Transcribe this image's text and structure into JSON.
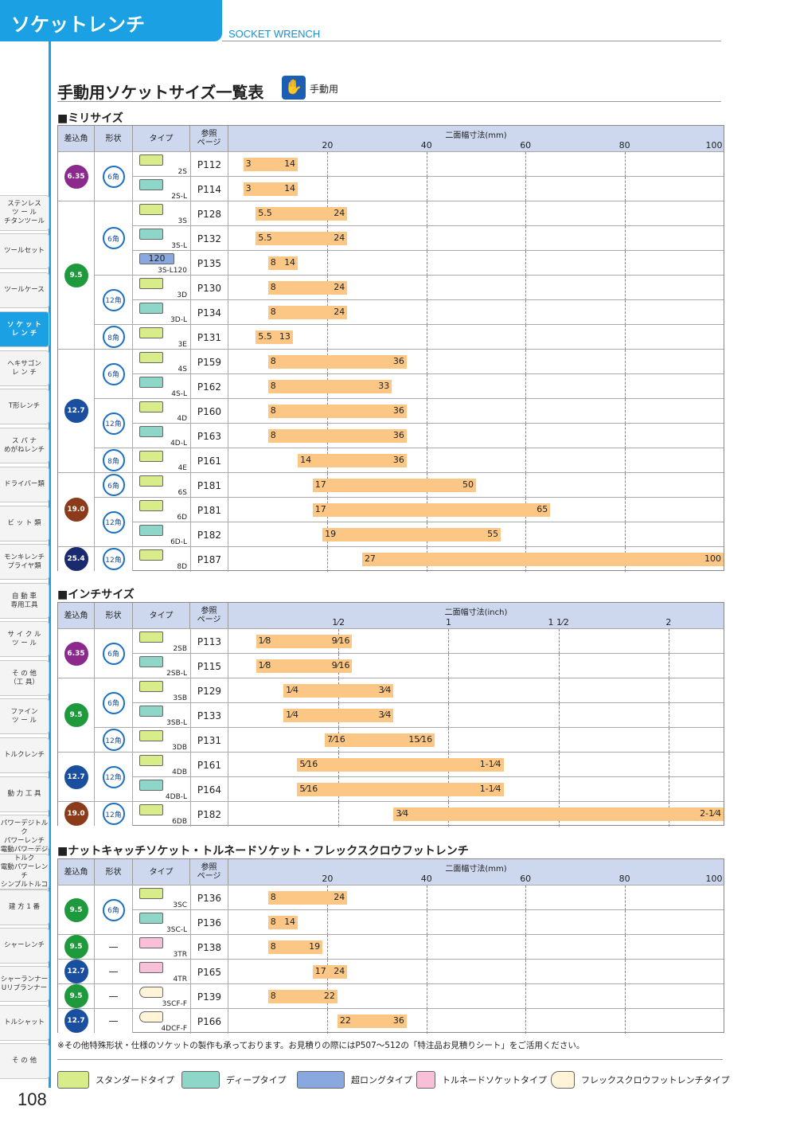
{
  "header": {
    "title": "ソケットレンチ",
    "subtitle_en": "SOCKET WRENCH"
  },
  "page_title": "手動用ソケットサイズ一覧表",
  "hand_label": "手動用",
  "page_number": "108",
  "tabs": [
    {
      "label": "ステンレス\nツ ー ル\nチタンツール",
      "active": false
    },
    {
      "label": "ツールセット",
      "active": false
    },
    {
      "label": "ツールケース",
      "active": false
    },
    {
      "label": "ソ ケ ッ ト\nレ ン チ",
      "active": true
    },
    {
      "label": "ヘキサゴン\nレ ン チ",
      "active": false
    },
    {
      "label": "T形レンチ",
      "active": false
    },
    {
      "label": "ス パ ナ\nめがねレンチ",
      "active": false
    },
    {
      "label": "ドライバー類",
      "active": false
    },
    {
      "label": "ビ ッ ト 類",
      "active": false
    },
    {
      "label": "モンキレンチ\nプライヤ類",
      "active": false
    },
    {
      "label": "自 動 車\n専用工具",
      "active": false
    },
    {
      "label": "サ イ ク ル\nツ ー ル",
      "active": false
    },
    {
      "label": "そ の 他\n（工 具）",
      "active": false
    },
    {
      "label": "ファイン\nツ ー ル",
      "active": false
    },
    {
      "label": "トルクレンチ",
      "active": false
    },
    {
      "label": "動 力 工 具",
      "active": false
    },
    {
      "label": "パワーデジトルク\nパワーレンチ",
      "active": false
    },
    {
      "label": "電動パワーデジトルク\n電動パワーレンチ\nシンプルトルコン",
      "active": false
    },
    {
      "label": "建 方 1 番",
      "active": false
    },
    {
      "label": "シャーレンチ",
      "active": false
    },
    {
      "label": "シャーランナー\nUリブランナー",
      "active": false
    },
    {
      "label": "トルシャット",
      "active": false
    },
    {
      "label": "そ の 他",
      "active": false
    }
  ],
  "headers": {
    "drive": "差込角",
    "shape": "形状",
    "type": "タイプ",
    "ref": "参照\nページ"
  },
  "drives": {
    "6.35": "#8b2a8c",
    "9.5": "#1e9a3c",
    "12.7": "#1a4f9f",
    "19.0": "#8b3a1a",
    "25.4": "#1a2a6f"
  },
  "type_colors": {
    "std": "#d8ec8a",
    "deep": "#8ed6c8",
    "long": "#8aa8e0",
    "tornado": "#f8c0d8",
    "flex": "#fff"
  },
  "sections": [
    {
      "title": "■ミリサイズ",
      "caption": "二面幅寸法(mm)",
      "ticks": [
        "20",
        "40",
        "60",
        "80",
        "100"
      ],
      "ticks_at": [
        20,
        40,
        60,
        80,
        100
      ],
      "min": 0,
      "max": 100,
      "drive_groups": [
        {
          "drive": "6.35",
          "rows": 2
        },
        {
          "drive": "9.5",
          "rows": 6
        },
        {
          "drive": "12.7",
          "rows": 5
        },
        {
          "drive": "19.0",
          "rows": 3
        },
        {
          "drive": "25.4",
          "rows": 1
        }
      ],
      "shape_groups": [
        {
          "label": "6角",
          "rows": 2
        },
        {
          "label": "6角",
          "rows": 3
        },
        {
          "label": "12角",
          "rows": 2
        },
        {
          "label": "8角",
          "rows": 1
        },
        {
          "label": "6角",
          "rows": 2
        },
        {
          "label": "12角",
          "rows": 2
        },
        {
          "label": "8角",
          "rows": 1
        },
        {
          "label": "6角",
          "rows": 1
        },
        {
          "label": "12角",
          "rows": 2
        },
        {
          "label": "12角",
          "rows": 1
        }
      ],
      "rows": [
        {
          "type": "2S",
          "kind": "std",
          "ref": "P112",
          "from": 3,
          "to": 14,
          "a": "3",
          "b": "14"
        },
        {
          "type": "2S-L",
          "kind": "deep",
          "ref": "P114",
          "from": 3,
          "to": 14,
          "a": "3",
          "b": "14"
        },
        {
          "type": "3S",
          "kind": "std",
          "ref": "P128",
          "from": 5.5,
          "to": 24,
          "a": "5.5",
          "b": "24"
        },
        {
          "type": "3S-L",
          "kind": "deep",
          "ref": "P132",
          "from": 5.5,
          "to": 24,
          "a": "5.5",
          "b": "24"
        },
        {
          "type": "3S-L120",
          "kind": "long",
          "sw": "120",
          "ref": "P135",
          "from": 8,
          "to": 14,
          "a": "8",
          "b": "14"
        },
        {
          "type": "3D",
          "kind": "std",
          "ref": "P130",
          "from": 8,
          "to": 24,
          "a": "8",
          "b": "24"
        },
        {
          "type": "3D-L",
          "kind": "deep",
          "ref": "P134",
          "from": 8,
          "to": 24,
          "a": "8",
          "b": "24"
        },
        {
          "type": "3E",
          "kind": "std",
          "ref": "P131",
          "from": 5.5,
          "to": 13,
          "a": "5.5",
          "b": "13"
        },
        {
          "type": "4S",
          "kind": "std",
          "ref": "P159",
          "from": 8,
          "to": 36,
          "a": "8",
          "b": "36"
        },
        {
          "type": "4S-L",
          "kind": "deep",
          "ref": "P162",
          "from": 8,
          "to": 33,
          "a": "8",
          "b": "33"
        },
        {
          "type": "4D",
          "kind": "std",
          "ref": "P160",
          "from": 8,
          "to": 36,
          "a": "8",
          "b": "36"
        },
        {
          "type": "4D-L",
          "kind": "deep",
          "ref": "P163",
          "from": 8,
          "to": 36,
          "a": "8",
          "b": "36"
        },
        {
          "type": "4E",
          "kind": "std",
          "ref": "P161",
          "from": 14,
          "to": 36,
          "a": "14",
          "b": "36"
        },
        {
          "type": "6S",
          "kind": "std",
          "ref": "P181",
          "from": 17,
          "to": 50,
          "a": "17",
          "b": "50"
        },
        {
          "type": "6D",
          "kind": "std",
          "ref": "P181",
          "from": 17,
          "to": 65,
          "a": "17",
          "b": "65"
        },
        {
          "type": "6D-L",
          "kind": "deep",
          "ref": "P182",
          "from": 19,
          "to": 55,
          "a": "19",
          "b": "55"
        },
        {
          "type": "8D",
          "kind": "std",
          "ref": "P187",
          "from": 27,
          "to": 100,
          "a": "27",
          "b": "100"
        }
      ]
    },
    {
      "title": "■インチサイズ",
      "caption": "二面幅寸法(inch)",
      "ticks": [
        "1⁄2",
        "1",
        "1 1⁄2",
        "2"
      ],
      "ticks_at": [
        0.5,
        1,
        1.5,
        2
      ],
      "min": 0,
      "max": 2.25,
      "drive_groups": [
        {
          "drive": "6.35",
          "rows": 2
        },
        {
          "drive": "9.5",
          "rows": 3
        },
        {
          "drive": "12.7",
          "rows": 2
        },
        {
          "drive": "19.0",
          "rows": 1
        }
      ],
      "shape_groups": [
        {
          "label": "6角",
          "rows": 2
        },
        {
          "label": "6角",
          "rows": 2
        },
        {
          "label": "12角",
          "rows": 1
        },
        {
          "label": "12角",
          "rows": 2
        },
        {
          "label": "12角",
          "rows": 1
        }
      ],
      "rows": [
        {
          "type": "2SB",
          "kind": "std",
          "ref": "P113",
          "from": 0.125,
          "to": 0.5625,
          "a": "1⁄8",
          "b": "9⁄16"
        },
        {
          "type": "2SB-L",
          "kind": "deep",
          "ref": "P115",
          "from": 0.125,
          "to": 0.5625,
          "a": "1⁄8",
          "b": "9⁄16"
        },
        {
          "type": "3SB",
          "kind": "std",
          "ref": "P129",
          "from": 0.25,
          "to": 0.75,
          "a": "1⁄4",
          "b": "3⁄4"
        },
        {
          "type": "3SB-L",
          "kind": "deep",
          "ref": "P133",
          "from": 0.25,
          "to": 0.75,
          "a": "1⁄4",
          "b": "3⁄4"
        },
        {
          "type": "3DB",
          "kind": "std",
          "ref": "P131",
          "from": 0.4375,
          "to": 0.9375,
          "a": "7⁄16",
          "b": "15⁄16"
        },
        {
          "type": "4DB",
          "kind": "std",
          "ref": "P161",
          "from": 0.3125,
          "to": 1.25,
          "a": "5⁄16",
          "b": "1-1⁄4"
        },
        {
          "type": "4DB-L",
          "kind": "deep",
          "ref": "P164",
          "from": 0.3125,
          "to": 1.25,
          "a": "5⁄16",
          "b": "1-1⁄4"
        },
        {
          "type": "6DB",
          "kind": "std",
          "ref": "P182",
          "from": 0.75,
          "to": 2.25,
          "a": "3⁄4",
          "b": "2-1⁄4"
        }
      ]
    },
    {
      "title": "■ナットキャッチソケット・トルネードソケット・フレックスクロウフットレンチ",
      "caption": "二面幅寸法(mm)",
      "ticks": [
        "20",
        "40",
        "60",
        "80",
        "100"
      ],
      "ticks_at": [
        20,
        40,
        60,
        80,
        100
      ],
      "min": 0,
      "max": 100,
      "drive_groups": [
        {
          "drive": "9.5",
          "rows": 2
        },
        {
          "drive": "9.5",
          "rows": 1
        },
        {
          "drive": "12.7",
          "rows": 1
        },
        {
          "drive": "9.5",
          "rows": 1
        },
        {
          "drive": "12.7",
          "rows": 1
        }
      ],
      "shape_groups": [
        {
          "label": "6角",
          "rows": 2
        },
        {
          "label": "—",
          "rows": 1
        },
        {
          "label": "—",
          "rows": 1
        },
        {
          "label": "—",
          "rows": 1
        },
        {
          "label": "—",
          "rows": 1
        }
      ],
      "rows": [
        {
          "type": "3SC",
          "kind": "std",
          "ref": "P136",
          "from": 8,
          "to": 24,
          "a": "8",
          "b": "24"
        },
        {
          "type": "3SC-L",
          "kind": "deep",
          "ref": "P136",
          "from": 8,
          "to": 14,
          "a": "8",
          "b": "14"
        },
        {
          "type": "3TR",
          "kind": "tornado",
          "ref": "P138",
          "from": 8,
          "to": 19,
          "a": "8",
          "b": "19"
        },
        {
          "type": "4TR",
          "kind": "tornado",
          "ref": "P165",
          "from": 17,
          "to": 24,
          "a": "17",
          "b": "24"
        },
        {
          "type": "3SCF-F",
          "kind": "flex",
          "ref": "P139",
          "from": 8,
          "to": 22,
          "a": "8",
          "b": "22"
        },
        {
          "type": "4DCF-F",
          "kind": "flex",
          "ref": "P166",
          "from": 22,
          "to": 36,
          "a": "22",
          "b": "36"
        }
      ]
    }
  ],
  "note": "※その他特殊形状・仕様のソケットの製作も承っております。お見積りの際にはP507～512の「特注品お見積りシート」をご活用ください。",
  "legend": [
    {
      "label": "スタンダードタイプ",
      "kind": "std"
    },
    {
      "label": "ディープタイプ",
      "kind": "deep"
    },
    {
      "label": "超ロングタイプ",
      "kind": "long"
    },
    {
      "label": "トルネードソケットタイプ",
      "kind": "tornado"
    },
    {
      "label": "フレックスクロウフットレンチタイプ",
      "kind": "flex"
    }
  ]
}
